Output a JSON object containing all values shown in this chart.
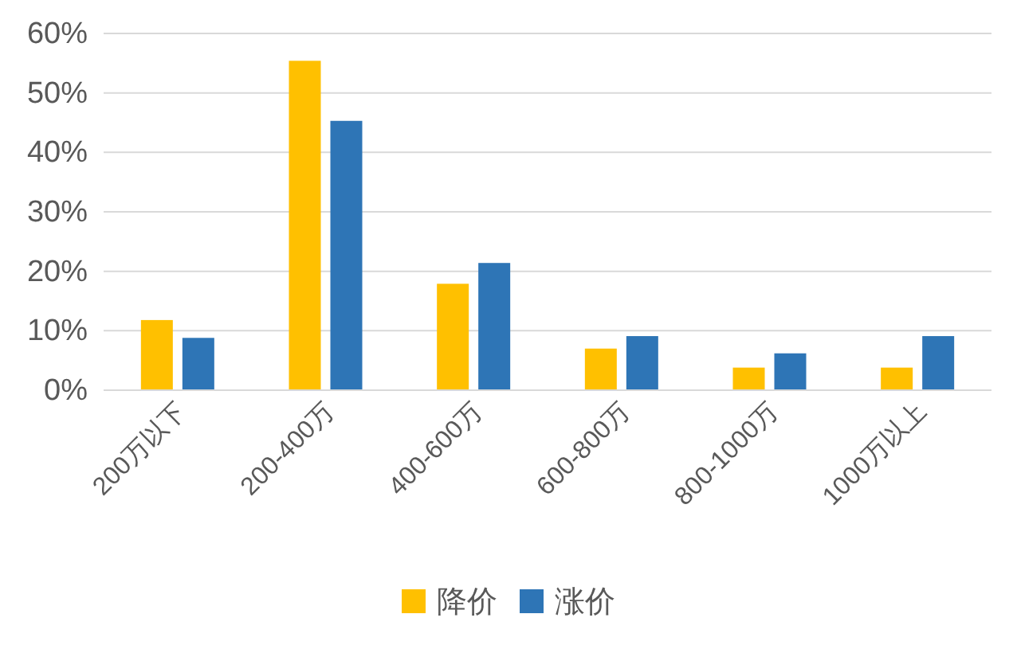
{
  "chart_data": {
    "type": "bar",
    "categories": [
      "200万以下",
      "200-400万",
      "400-600万",
      "600-800万",
      "800-1000万",
      "1000万以上"
    ],
    "series": [
      {
        "name": "降价",
        "color": "#ffc000",
        "values": [
          11.8,
          55.4,
          17.9,
          7.0,
          3.8,
          3.8
        ]
      },
      {
        "name": "涨价",
        "color": "#2e75b6",
        "values": [
          8.8,
          45.3,
          21.4,
          9.1,
          6.2,
          9.1
        ]
      }
    ],
    "ylim": [
      0,
      60
    ],
    "yticks": [
      {
        "value": 0,
        "label": "0%"
      },
      {
        "value": 10,
        "label": "10%"
      },
      {
        "value": 20,
        "label": "20%"
      },
      {
        "value": 30,
        "label": "30%"
      },
      {
        "value": 40,
        "label": "40%"
      },
      {
        "value": 50,
        "label": "50%"
      },
      {
        "value": 60,
        "label": "60%"
      }
    ],
    "grid": "y",
    "legend": "bottom"
  }
}
